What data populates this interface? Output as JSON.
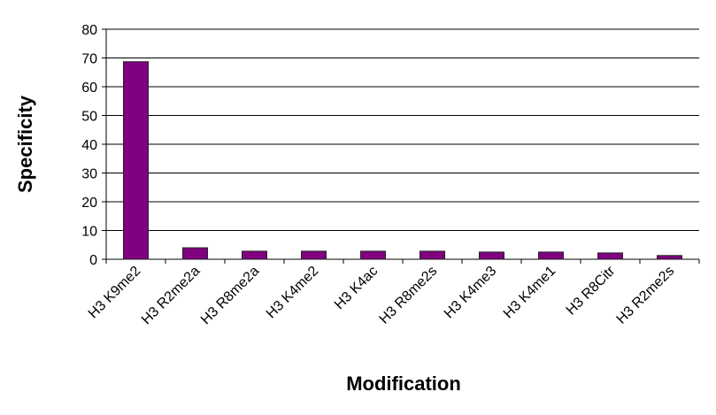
{
  "chart_data": {
    "type": "bar",
    "x_label": "Modification",
    "y_label": "Specificity",
    "categories": [
      "H3 K9me2",
      "H3 R2me2a",
      "H3 R8me2a",
      "H3 K4me2",
      "H3 K4ac",
      "H3 R8me2s",
      "H3 K4me3",
      "H3 K4me1",
      "H3 R8Citr",
      "H3 R2me2s"
    ],
    "values": [
      68.7,
      4.0,
      2.8,
      2.8,
      2.8,
      2.8,
      2.5,
      2.5,
      2.2,
      1.3
    ],
    "color": "#800080",
    "ylim": [
      0,
      80
    ],
    "yticks": [
      0,
      10,
      20,
      30,
      40,
      50,
      60,
      70,
      80
    ],
    "grid": true
  }
}
